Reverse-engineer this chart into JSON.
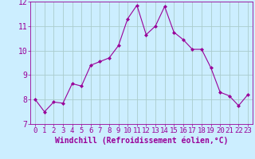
{
  "x": [
    0,
    1,
    2,
    3,
    4,
    5,
    6,
    7,
    8,
    9,
    10,
    11,
    12,
    13,
    14,
    15,
    16,
    17,
    18,
    19,
    20,
    21,
    22,
    23
  ],
  "y": [
    8.0,
    7.5,
    7.9,
    7.85,
    8.65,
    8.55,
    9.4,
    9.55,
    9.7,
    10.2,
    11.3,
    11.85,
    10.65,
    11.0,
    11.8,
    10.75,
    10.45,
    10.05,
    10.05,
    9.3,
    8.3,
    8.15,
    7.75,
    8.2
  ],
  "line_color": "#990099",
  "marker": "D",
  "marker_size": 2,
  "bg_color": "#cceeff",
  "grid_color": "#aacccc",
  "xlabel": "Windchill (Refroidissement éolien,°C)",
  "xlabel_color": "#990099",
  "tick_color": "#990099",
  "ylim": [
    7,
    12
  ],
  "xlim": [
    -0.5,
    23.5
  ],
  "yticks": [
    7,
    8,
    9,
    10,
    11,
    12
  ],
  "xticks": [
    0,
    1,
    2,
    3,
    4,
    5,
    6,
    7,
    8,
    9,
    10,
    11,
    12,
    13,
    14,
    15,
    16,
    17,
    18,
    19,
    20,
    21,
    22,
    23
  ],
  "font_size": 6.5,
  "xlabel_font_size": 7.0,
  "line_width": 0.8
}
